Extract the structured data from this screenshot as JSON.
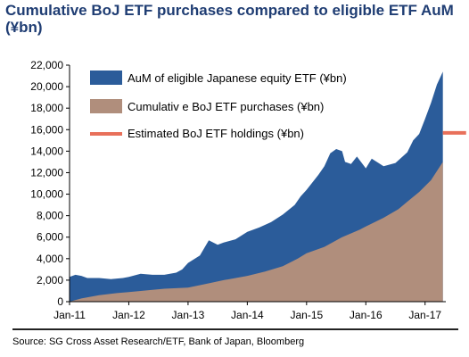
{
  "title": "Cumulative BoJ ETF purchases compared to eligible ETF AuM (¥bn)",
  "source": "Source: SG Cross Asset Research/ETF, Bank of Japan, Bloomberg",
  "chart_data": {
    "type": "area",
    "title": "Cumulative BoJ ETF purchases compared to eligible ETF AuM (¥bn)",
    "x_unit": "year",
    "xlim": [
      2011.0,
      2017.35
    ],
    "ylim": [
      0,
      22000
    ],
    "yticks": [
      0,
      2000,
      4000,
      6000,
      8000,
      10000,
      12000,
      14000,
      16000,
      18000,
      20000,
      22000
    ],
    "ytick_labels": [
      "0",
      "2,000",
      "4,000",
      "6,000",
      "8,000",
      "10,000",
      "12,000",
      "14,000",
      "16,000",
      "18,000",
      "20,000",
      "22,000"
    ],
    "xticks": [
      2011,
      2012,
      2013,
      2014,
      2015,
      2016,
      2017
    ],
    "xtick_labels": [
      "Jan-11",
      "Jan-12",
      "Jan-13",
      "Jan-14",
      "Jan-15",
      "Jan-16",
      "Jan-17"
    ],
    "grid": false,
    "legend_position": "top-left",
    "colors": {
      "aum": "#2b5c9a",
      "purchases": "#b08e7c",
      "holdings": "#e8705a"
    },
    "series": [
      {
        "name": "AuM of eligible Japanese equity ETF (¥bn)",
        "type": "area",
        "x": [
          2011.0,
          2011.1,
          2011.2,
          2011.3,
          2011.5,
          2011.7,
          2011.9,
          2012.0,
          2012.2,
          2012.4,
          2012.6,
          2012.8,
          2012.9,
          2013.0,
          2013.2,
          2013.35,
          2013.5,
          2013.6,
          2013.8,
          2014.0,
          2014.2,
          2014.4,
          2014.6,
          2014.8,
          2014.9,
          2015.0,
          2015.2,
          2015.3,
          2015.4,
          2015.5,
          2015.6,
          2015.65,
          2015.75,
          2015.85,
          2016.0,
          2016.1,
          2016.3,
          2016.5,
          2016.7,
          2016.8,
          2016.9,
          2017.0,
          2017.1,
          2017.2,
          2017.3
        ],
        "y": [
          2300,
          2500,
          2400,
          2200,
          2200,
          2100,
          2200,
          2300,
          2600,
          2500,
          2500,
          2700,
          3000,
          3600,
          4300,
          5700,
          5300,
          5500,
          5800,
          6500,
          6900,
          7400,
          8100,
          9000,
          9800,
          10400,
          11800,
          12600,
          13800,
          14200,
          14000,
          13000,
          12800,
          13500,
          12400,
          13300,
          12600,
          12900,
          13900,
          15000,
          15600,
          17000,
          18500,
          20200,
          21400
        ]
      },
      {
        "name": "Cumulativ e BoJ ETF purchases (¥bn)",
        "type": "area",
        "x": [
          2011.0,
          2011.2,
          2011.5,
          2011.8,
          2012.0,
          2012.3,
          2012.6,
          2013.0,
          2013.3,
          2013.6,
          2014.0,
          2014.3,
          2014.6,
          2014.85,
          2015.0,
          2015.3,
          2015.6,
          2015.9,
          2016.0,
          2016.3,
          2016.55,
          2016.7,
          2016.9,
          2017.1,
          2017.3
        ],
        "y": [
          0,
          300,
          600,
          800,
          900,
          1050,
          1200,
          1300,
          1650,
          2000,
          2400,
          2800,
          3300,
          4000,
          4500,
          5100,
          6000,
          6700,
          7000,
          7800,
          8600,
          9300,
          10200,
          11300,
          13000
        ]
      },
      {
        "name": "Estimated BoJ ETF holdings (¥bn)",
        "type": "line",
        "x": [
          2017.0,
          2017.3
        ],
        "y": [
          15700,
          15700
        ]
      }
    ]
  }
}
